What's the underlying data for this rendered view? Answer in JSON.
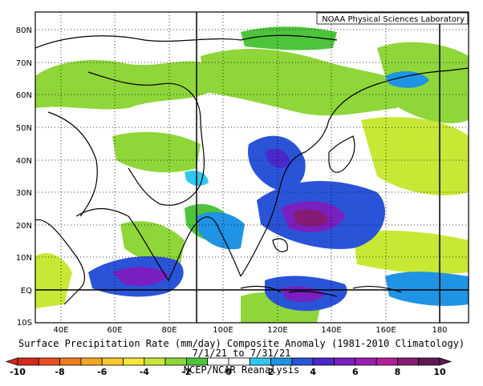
{
  "credit": "NOAA Physical Sciences Laboratory",
  "title": "Surface Precipitation Rate (mm/day) Composite Anomaly (1981-2010 Climatology)",
  "period": "7/1/21  to 7/31/21",
  "source": "NCEP/NCAR Reanalysis",
  "lat_labels": [
    "80N",
    "70N",
    "60N",
    "50N",
    "40N",
    "30N",
    "20N",
    "10N",
    "EQ",
    "10S"
  ],
  "lon_labels": [
    "40E",
    "60E",
    "80E",
    "100E",
    "120E",
    "140E",
    "160E",
    "180"
  ],
  "colorbar": {
    "tick_labels": [
      "-10",
      "-8",
      "-6",
      "-4",
      "-2",
      "0",
      "2",
      "4",
      "6",
      "8",
      "10"
    ],
    "colors": [
      "#d42a1a",
      "#e8501e",
      "#f07d1c",
      "#f5a51e",
      "#f7c82a",
      "#f5e838",
      "#c8e836",
      "#8fd63a",
      "#4ec43c",
      "#ffffff",
      "#ffffff",
      "#30c8f0",
      "#1f93e4",
      "#2a54d8",
      "#4a28cc",
      "#7a1fc0",
      "#9a1fb0",
      "#b21f9c",
      "#851c74",
      "#5e1a52"
    ]
  },
  "map": {
    "projection": "cylindrical-equidistant",
    "lon_range": [
      30,
      190
    ],
    "lat_range": [
      -10,
      85
    ],
    "field": "precipitation rate anomaly"
  }
}
